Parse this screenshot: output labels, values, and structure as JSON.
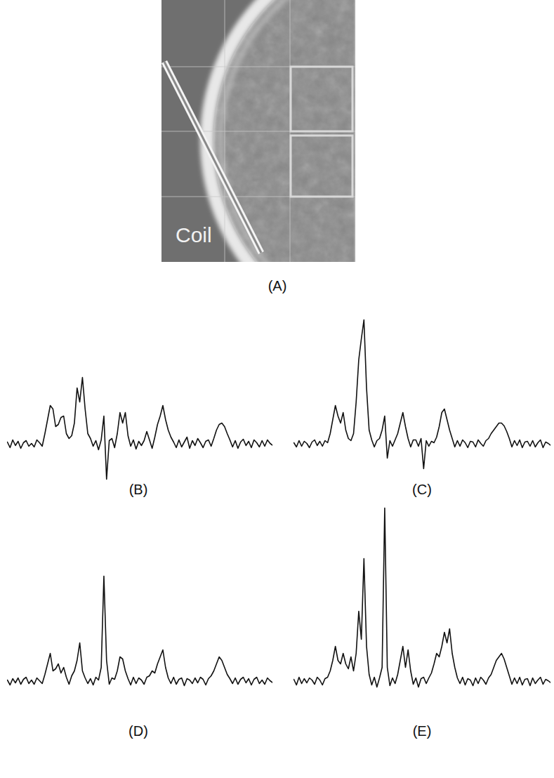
{
  "figure": {
    "panel_A": {
      "label": "(A)",
      "annotation": "Coil"
    }
  },
  "chart_data": [
    {
      "type": "line",
      "title": "(B)",
      "tick_labels": false,
      "color": "#111111",
      "ylim": [
        -6,
        21
      ],
      "values": [
        0.3,
        -0.5,
        0.6,
        -0.2,
        0.4,
        -0.6,
        0.2,
        0.5,
        -0.3,
        0.1,
        -0.4,
        0.6,
        0.2,
        -0.3,
        1.5,
        3.5,
        5.5,
        5.0,
        2.5,
        2.8,
        3.8,
        4.0,
        1.5,
        0.8,
        1.2,
        3.0,
        8.0,
        6.0,
        9.5,
        5.0,
        1.5,
        0.8,
        -0.3,
        0.5,
        -0.8,
        0.6,
        4.0,
        -5.0,
        0.5,
        0.8,
        -0.5,
        1.5,
        4.5,
        3.0,
        4.5,
        1.2,
        -0.3,
        0.6,
        -0.7,
        0.4,
        -0.2,
        0.5,
        1.8,
        0.6,
        -0.6,
        1.0,
        2.8,
        4.0,
        5.5,
        3.5,
        2.0,
        1.0,
        0.3,
        -0.5,
        0.6,
        -0.4,
        0.3,
        1.0,
        -0.6,
        0.5,
        -0.2,
        0.8,
        0.2,
        -0.5,
        0.4,
        0.6,
        -0.3,
        0.8,
        2.0,
        2.8,
        3.0,
        2.5,
        1.5,
        0.6,
        -0.4,
        0.5,
        -0.6,
        0.3,
        0.7,
        -0.2,
        0.4,
        -0.5,
        0.6,
        0.2,
        -0.4,
        0.5,
        -0.3,
        0.6,
        0.1,
        -0.2
      ]
    },
    {
      "type": "line",
      "title": "(C)",
      "tick_labels": false,
      "color": "#111111",
      "ylim": [
        -6,
        21
      ],
      "values": [
        0.2,
        -0.4,
        0.5,
        -0.3,
        0.4,
        0.1,
        -0.5,
        0.3,
        0.6,
        -0.2,
        0.4,
        -0.3,
        0.5,
        0.2,
        1.5,
        3.5,
        5.5,
        4.0,
        3.0,
        4.5,
        2.0,
        0.8,
        0.5,
        1.5,
        6.0,
        12.0,
        15.0,
        17.7,
        8.0,
        2.0,
        0.6,
        -0.4,
        0.5,
        0.8,
        2.0,
        4.0,
        -2.0,
        0.5,
        -0.3,
        0.6,
        1.5,
        3.0,
        4.5,
        2.5,
        0.8,
        -0.4,
        0.6,
        0.6,
        -0.3,
        0.8,
        -3.5,
        0.5,
        -0.3,
        0.4,
        0.2,
        1.0,
        2.5,
        4.5,
        5.0,
        3.5,
        2.0,
        0.8,
        -0.4,
        0.5,
        -0.3,
        0.6,
        0.2,
        -0.5,
        0.4,
        0.3,
        -0.4,
        0.6,
        0.1,
        -0.3,
        0.5,
        0.8,
        1.5,
        2.0,
        2.5,
        3.0,
        3.0,
        2.6,
        1.8,
        0.8,
        -0.4,
        0.5,
        -0.2,
        0.6,
        -0.5,
        0.3,
        0.4,
        -0.3,
        0.5,
        -0.4,
        0.2,
        0.6,
        -0.5,
        0.3,
        0.1,
        -0.2
      ]
    },
    {
      "type": "line",
      "title": "(D)",
      "tick_labels": false,
      "color": "#111111",
      "ylim": [
        -6,
        26
      ],
      "values": [
        0.2,
        -0.5,
        0.4,
        -0.2,
        0.5,
        -0.4,
        0.3,
        0.6,
        -0.3,
        0.2,
        -0.4,
        0.5,
        0.1,
        -0.3,
        1.0,
        2.5,
        4.0,
        1.5,
        1.8,
        2.5,
        1.2,
        2.0,
        0.6,
        -0.4,
        0.8,
        1.5,
        3.0,
        5.5,
        1.5,
        0.5,
        -0.3,
        0.4,
        -0.5,
        0.6,
        0.2,
        2.0,
        15.0,
        3.0,
        -0.4,
        0.5,
        0.3,
        1.5,
        3.5,
        3.2,
        1.5,
        0.4,
        -0.5,
        0.6,
        -0.3,
        0.5,
        0.2,
        -0.4,
        0.6,
        0.8,
        1.5,
        1.2,
        2.5,
        3.5,
        4.5,
        2.0,
        0.5,
        -0.3,
        0.6,
        -0.4,
        0.3,
        0.5,
        -0.6,
        0.4,
        0.2,
        -0.3,
        0.5,
        -0.2,
        0.6,
        0.3,
        -0.5,
        0.4,
        0.8,
        1.5,
        2.5,
        3.5,
        3.0,
        2.0,
        1.0,
        0.4,
        -0.3,
        0.5,
        -0.4,
        0.3,
        0.6,
        -0.2,
        0.4,
        -0.5,
        0.3,
        0.6,
        -0.3,
        0.2,
        -0.4,
        0.5,
        0.1,
        -0.2
      ]
    },
    {
      "type": "line",
      "title": "(E)",
      "tick_labels": false,
      "color": "#111111",
      "ylim": [
        -6,
        26
      ],
      "values": [
        0.3,
        -0.5,
        0.6,
        -0.3,
        0.4,
        -0.2,
        0.5,
        0.2,
        -0.4,
        0.6,
        0.2,
        -0.5,
        0.4,
        0.6,
        1.5,
        3.0,
        5.0,
        3.0,
        2.5,
        4.0,
        2.5,
        1.8,
        3.5,
        1.5,
        4.0,
        10.0,
        6.0,
        17.5,
        5.0,
        1.0,
        -0.5,
        0.6,
        -0.8,
        0.5,
        2.0,
        24.7,
        2.0,
        -0.6,
        0.5,
        -0.3,
        1.0,
        3.0,
        5.0,
        2.0,
        4.5,
        1.5,
        -0.4,
        0.5,
        -0.8,
        0.4,
        0.6,
        -0.3,
        0.5,
        1.2,
        2.5,
        4.0,
        3.5,
        5.0,
        7.0,
        5.5,
        7.5,
        4.0,
        2.0,
        0.5,
        -0.3,
        0.6,
        -0.5,
        0.4,
        0.2,
        -0.6,
        0.5,
        -0.3,
        0.6,
        0.2,
        -0.4,
        0.5,
        1.0,
        2.0,
        3.0,
        3.5,
        4.0,
        3.2,
        2.0,
        0.8,
        -0.4,
        0.5,
        -0.3,
        0.6,
        -0.5,
        0.3,
        0.4,
        -0.6,
        0.5,
        -0.3,
        0.2,
        0.6,
        -0.4,
        0.3,
        0.1,
        -0.2
      ]
    }
  ]
}
